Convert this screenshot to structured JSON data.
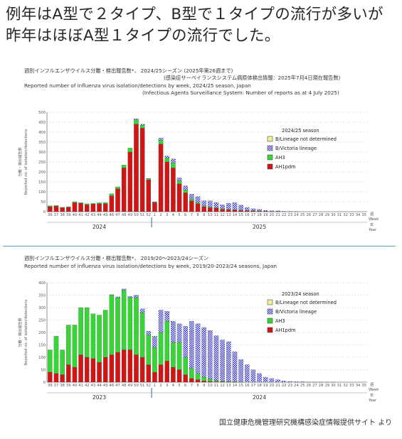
{
  "headline": "例年はA型で２タイプ、B型で１タイプの流行が多いが昨年はほぼA型１タイプの流行でした。",
  "source": "国立健康危機管理研究機構感染症情報提供サイト より",
  "colors": {
    "AH1pdm": "#d11414",
    "AH3": "#36d636",
    "B/Victoria lineage": "#2a2ad6",
    "B/Lineage not determined": "#f2ef96",
    "grid": "#cccccc",
    "divider": "#5aa6c8"
  },
  "chart_data": [
    {
      "type": "bar",
      "stacked": true,
      "title_jp": "週別インフルエンザウイルス分離・検出報告数*， 2024/25シーズン (2025年第26週まで)",
      "subtitle_jp": "(感染症サーベイランスシステム病原体検出情報：2025年7月4日現在報告数)",
      "title": "Reported number of influenza virus isolation/detections by week, 2024/25 season, Japan",
      "subtitle": "(Infectious Agents Surveillance System: Number of reports as at 4 July 2025)",
      "ylabel_jp": "分離・検出報告数",
      "ylabel": "Reported no. of isolation/detections",
      "ylim": [
        0,
        500
      ],
      "yticks": [
        0,
        50,
        100,
        150,
        200,
        250,
        300,
        350,
        400,
        450,
        500
      ],
      "legend_title": "2024/25 season",
      "legend": [
        "B/Lineage not determined",
        "B/Victoria lineage",
        "AH3",
        "AH1pdm"
      ],
      "week_label_jp": "週",
      "week_label": "Week",
      "year_label_jp": "年",
      "year_label": "Year",
      "years": [
        "2024",
        "2025"
      ],
      "categories": [
        "36",
        "37",
        "38",
        "39",
        "40",
        "41",
        "42",
        "43",
        "44",
        "45",
        "46",
        "47",
        "48",
        "49",
        "50",
        "51",
        "52",
        "1",
        "2",
        "3",
        "4",
        "5",
        "6",
        "7",
        "8",
        "9",
        "10",
        "11",
        "12",
        "13",
        "14",
        "15",
        "16",
        "17",
        "18",
        "19",
        "20",
        "21",
        "22",
        "23",
        "24",
        "25",
        "26",
        "27",
        "28",
        "29",
        "30",
        "31",
        "32",
        "33",
        "34",
        "35"
      ],
      "series": [
        {
          "name": "AH1pdm",
          "values": [
            25,
            28,
            20,
            22,
            45,
            42,
            35,
            38,
            40,
            40,
            80,
            115,
            220,
            300,
            440,
            420,
            160,
            45,
            340,
            250,
            220,
            140,
            95,
            55,
            40,
            25,
            20,
            18,
            12,
            10,
            8,
            6,
            5,
            4,
            3,
            2,
            1,
            1,
            0,
            0,
            0,
            0,
            0,
            0,
            0,
            0,
            0,
            0,
            0,
            0,
            0,
            0
          ]
        },
        {
          "name": "AH3",
          "values": [
            5,
            3,
            2,
            3,
            5,
            4,
            5,
            4,
            5,
            6,
            10,
            10,
            15,
            20,
            22,
            15,
            5,
            3,
            20,
            20,
            25,
            15,
            15,
            8,
            6,
            5,
            4,
            3,
            3,
            2,
            2,
            2,
            1,
            1,
            1,
            0,
            0,
            0,
            0,
            0,
            0,
            0,
            0,
            0,
            0,
            0,
            0,
            0,
            0,
            0,
            0,
            0
          ]
        },
        {
          "name": "B/Victoria lineage",
          "values": [
            0,
            0,
            0,
            0,
            0,
            0,
            0,
            0,
            0,
            0,
            0,
            0,
            0,
            0,
            5,
            5,
            2,
            2,
            10,
            10,
            20,
            15,
            20,
            25,
            30,
            25,
            30,
            25,
            20,
            30,
            35,
            25,
            15,
            10,
            8,
            5,
            4,
            3,
            2,
            1,
            1,
            0,
            0,
            0,
            0,
            0,
            0,
            0,
            0,
            0,
            0,
            0
          ]
        },
        {
          "name": "B/Lineage not determined",
          "values": [
            0,
            0,
            0,
            0,
            0,
            0,
            0,
            0,
            0,
            0,
            0,
            0,
            0,
            0,
            0,
            0,
            0,
            0,
            0,
            0,
            0,
            0,
            0,
            0,
            0,
            0,
            0,
            0,
            0,
            0,
            0,
            0,
            0,
            0,
            0,
            0,
            0,
            0,
            0,
            0,
            0,
            0,
            0,
            0,
            0,
            0,
            0,
            0,
            0,
            0,
            0,
            0
          ]
        }
      ]
    },
    {
      "type": "bar",
      "stacked": true,
      "title_jp": "週別インフルエンザウイルス分離・検出報告数*， 2019/20～2023/24シーズン",
      "title": "Reported number of influenza virus isolation/detections by week, 2019/20-2023/24 seasons, Japan",
      "ylabel_jp": "分離・検出報告数",
      "ylabel": "Reported no. of isolation/detections",
      "ylim": [
        0,
        400
      ],
      "yticks": [
        0,
        50,
        100,
        150,
        200,
        250,
        300,
        350,
        400
      ],
      "legend_title": "2023/24 season",
      "legend": [
        "B/Lineage not determined",
        "B/Victoria lineage",
        "AH3",
        "AH1pdm"
      ],
      "week_label_jp": "週",
      "week_label": "Week",
      "year_label_jp": "年",
      "year_label": "Year",
      "years": [
        "2023",
        "2024"
      ],
      "categories": [
        "36",
        "37",
        "38",
        "39",
        "40",
        "41",
        "42",
        "43",
        "44",
        "45",
        "46",
        "47",
        "48",
        "49",
        "50",
        "51",
        "52",
        "1",
        "2",
        "3",
        "4",
        "5",
        "6",
        "7",
        "8",
        "9",
        "10",
        "11",
        "12",
        "13",
        "14",
        "15",
        "16",
        "17",
        "18",
        "19",
        "20",
        "21",
        "22",
        "23",
        "24",
        "25",
        "26",
        "27",
        "28",
        "29",
        "30",
        "31",
        "32",
        "33",
        "34",
        "35"
      ],
      "series": [
        {
          "name": "AH1pdm",
          "values": [
            40,
            35,
            30,
            70,
            60,
            110,
            100,
            95,
            80,
            100,
            110,
            120,
            130,
            130,
            110,
            100,
            70,
            40,
            70,
            85,
            60,
            50,
            30,
            15,
            10,
            5,
            3,
            2,
            2,
            1,
            1,
            0,
            0,
            0,
            0,
            0,
            0,
            0,
            0,
            0,
            0,
            0,
            0,
            0,
            0,
            0,
            0,
            0,
            0,
            0,
            0,
            0
          ]
        },
        {
          "name": "AH3",
          "values": [
            90,
            150,
            100,
            160,
            170,
            190,
            200,
            180,
            190,
            190,
            240,
            220,
            240,
            210,
            230,
            180,
            120,
            100,
            130,
            160,
            100,
            110,
            70,
            40,
            25,
            15,
            10,
            5,
            3,
            2,
            1,
            1,
            0,
            0,
            0,
            0,
            0,
            0,
            0,
            0,
            0,
            0,
            0,
            0,
            0,
            0,
            0,
            0,
            0,
            0,
            0,
            0
          ]
        },
        {
          "name": "B/Victoria lineage",
          "values": [
            0,
            0,
            0,
            0,
            0,
            0,
            0,
            0,
            0,
            0,
            2,
            3,
            5,
            5,
            10,
            15,
            15,
            45,
            90,
            40,
            85,
            75,
            125,
            190,
            200,
            200,
            195,
            180,
            165,
            160,
            120,
            90,
            70,
            50,
            35,
            20,
            15,
            10,
            5,
            3,
            2,
            2,
            1,
            1,
            1,
            1,
            1,
            0,
            0,
            0,
            0,
            0
          ]
        },
        {
          "name": "B/Lineage not determined",
          "values": [
            0,
            0,
            0,
            0,
            0,
            0,
            0,
            0,
            0,
            0,
            0,
            0,
            0,
            0,
            0,
            0,
            0,
            0,
            0,
            0,
            0,
            0,
            0,
            0,
            0,
            0,
            0,
            0,
            0,
            0,
            0,
            0,
            0,
            0,
            0,
            0,
            0,
            0,
            0,
            0,
            0,
            0,
            0,
            0,
            0,
            0,
            0,
            0,
            0,
            0,
            0,
            0
          ]
        }
      ]
    }
  ]
}
